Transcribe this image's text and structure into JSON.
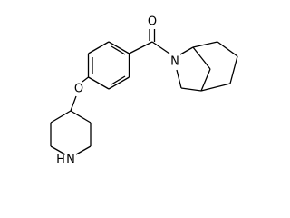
{
  "atoms": {
    "carbonyl_o": "O",
    "amide_n": "N",
    "ether_o": "O",
    "amine_n": "N",
    "amine_h": "H"
  }
}
